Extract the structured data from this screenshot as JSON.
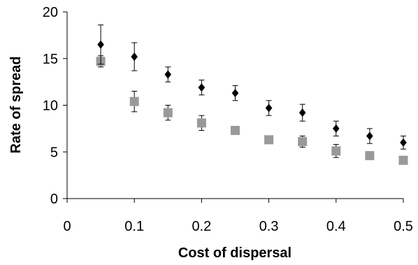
{
  "chart_data": {
    "type": "scatter",
    "xlabel": "Cost of dispersal",
    "ylabel": "Rate of spread",
    "xlim": [
      0,
      0.5
    ],
    "ylim": [
      0,
      20
    ],
    "x_ticks": [
      "0",
      "0.1",
      "0.2",
      "0.3",
      "0.4",
      "0.5"
    ],
    "y_ticks": [
      "0",
      "5",
      "10",
      "15",
      "20"
    ],
    "grid": false,
    "series": [
      {
        "marker": "diamond",
        "color": "#000000",
        "x": [
          0.05,
          0.1,
          0.15,
          0.2,
          0.25,
          0.3,
          0.35,
          0.4,
          0.45,
          0.5
        ],
        "y": [
          16.5,
          15.2,
          13.3,
          11.9,
          11.3,
          9.7,
          9.2,
          7.5,
          6.7,
          6.0
        ],
        "error": [
          2.1,
          1.5,
          0.8,
          0.8,
          0.8,
          0.8,
          0.9,
          0.8,
          0.8,
          0.7
        ]
      },
      {
        "marker": "square",
        "color": "#999999",
        "x": [
          0.05,
          0.1,
          0.15,
          0.2,
          0.25,
          0.3,
          0.35,
          0.4,
          0.45,
          0.5
        ],
        "y": [
          14.7,
          10.4,
          9.2,
          8.1,
          7.3,
          6.3,
          6.1,
          5.1,
          4.6,
          4.1
        ],
        "error": [
          0.6,
          1.1,
          0.8,
          0.8,
          0.4,
          0.2,
          0.6,
          0.7,
          0.2,
          0.2
        ]
      }
    ]
  }
}
